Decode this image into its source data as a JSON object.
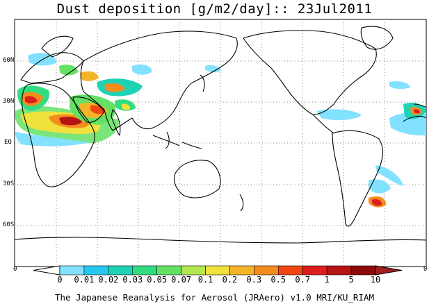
{
  "title": "Dust deposition [g/m2/day]:: 23Jul2011",
  "lat_labels": [
    "60N",
    "30N",
    "EQ",
    "30S",
    "60S"
  ],
  "edge_zero_left": "0",
  "edge_zero_right": "0",
  "colorbar": {
    "labels": [
      "0",
      "0.01",
      "0.02",
      "0.03",
      "0.05",
      "0.07",
      "0.1",
      "0.2",
      "0.3",
      "0.5",
      "0.7",
      "1",
      "5",
      "10"
    ],
    "colors": [
      "#ffffff",
      "#82e1ff",
      "#27c8f0",
      "#1ed2b4",
      "#32dc80",
      "#64e164",
      "#b4e650",
      "#f0e13c",
      "#f5b428",
      "#f58c1e",
      "#f04614",
      "#dc1e1e",
      "#b41414",
      "#8c0a0a",
      "#a01e1e"
    ]
  },
  "footer": "The Japanese Reanalysis for Aerosol (JRAero) v1.0 MRI/KU_RIAM",
  "colors": {
    "background": "#ffffff",
    "coastline": "#000000",
    "grid": "#8c8c8c"
  }
}
